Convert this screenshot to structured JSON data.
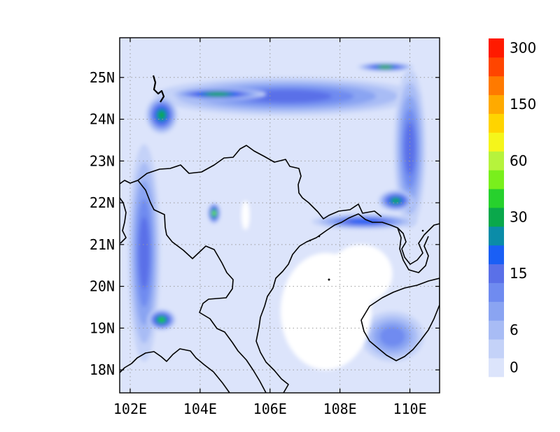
{
  "map": {
    "lon_range": [
      101.7,
      110.85
    ],
    "lat_range": [
      17.45,
      25.95
    ],
    "x_ticks": [
      {
        "value": 102,
        "label": "102E"
      },
      {
        "value": 104,
        "label": "104E"
      },
      {
        "value": 106,
        "label": "106E"
      },
      {
        "value": 108,
        "label": "108E"
      },
      {
        "value": 110,
        "label": "110E"
      }
    ],
    "y_ticks": [
      {
        "value": 18,
        "label": "18N"
      },
      {
        "value": 19,
        "label": "19N"
      },
      {
        "value": 20,
        "label": "20N"
      },
      {
        "value": 21,
        "label": "21N"
      },
      {
        "value": 22,
        "label": "22N"
      },
      {
        "value": 23,
        "label": "23N"
      },
      {
        "value": 24,
        "label": "24N"
      },
      {
        "value": 25,
        "label": "25N"
      }
    ],
    "gridlines": "dotted",
    "background_color": "#dce4fb",
    "features": [
      {
        "name": "northern-rain-band",
        "level": 5,
        "lon": 106.5,
        "lat": 24.55,
        "rx": 3.8,
        "ry": 0.45
      },
      {
        "name": "northern-rain-band-core",
        "level": 8,
        "lon": 104.5,
        "lat": 24.6,
        "rx": 1.4,
        "ry": 0.15
      },
      {
        "name": "northern-rain-band-east",
        "level": 8,
        "lon": 109.3,
        "lat": 25.25,
        "rx": 0.8,
        "ry": 0.1
      },
      {
        "name": "northwest-maximum",
        "level": 8,
        "lon": 102.9,
        "lat": 24.1,
        "rx": 0.45,
        "ry": 0.45
      },
      {
        "name": "eastern-column",
        "level": 5,
        "lon": 110.0,
        "lat": 23.3,
        "rx": 0.45,
        "ry": 1.9
      },
      {
        "name": "guangxi-maximum",
        "level": 8,
        "lon": 109.6,
        "lat": 22.05,
        "rx": 0.5,
        "ry": 0.25
      },
      {
        "name": "western-column",
        "level": 5,
        "lon": 102.4,
        "lat": 20.8,
        "rx": 0.45,
        "ry": 2.6
      },
      {
        "name": "laos-maximum",
        "level": 9,
        "lon": 102.9,
        "lat": 19.2,
        "rx": 0.4,
        "ry": 0.25
      },
      {
        "name": "northern-vietnam-peak",
        "level": 10,
        "lon": 104.4,
        "lat": 21.75,
        "rx": 0.18,
        "ry": 0.25
      },
      {
        "name": "coastal-band",
        "level": 6,
        "lon": 108.7,
        "lat": 21.55,
        "rx": 1.5,
        "ry": 0.18
      },
      {
        "name": "hainan-rain",
        "level": 4,
        "lon": 109.5,
        "lat": 18.8,
        "rx": 0.9,
        "ry": 0.6
      }
    ],
    "dry_areas": [
      {
        "name": "gulf-of-tonkin-dry",
        "lon": 107.6,
        "lat": 19.4,
        "rx": 1.3,
        "ry": 1.4
      },
      {
        "name": "gulf-open-dry",
        "lon": 108.6,
        "lat": 20.3,
        "rx": 0.9,
        "ry": 0.7
      },
      {
        "name": "inland-dry-patch",
        "lon": 105.3,
        "lat": 21.7,
        "rx": 0.12,
        "ry": 0.35
      }
    ]
  },
  "colorbar": {
    "colors": [
      "#dce4fb",
      "#c4d2f8",
      "#a8bcf5",
      "#8aa4f2",
      "#6f8bf0",
      "#5a70e8",
      "#1a5ff5",
      "#0b8ca8",
      "#0aa84b",
      "#27d12d",
      "#79ef1c",
      "#b6f33c",
      "#f5f51b",
      "#ffd400",
      "#ffaa00",
      "#ff7a00",
      "#ff4500",
      "#ff1a00"
    ],
    "labels": [
      {
        "index": 0,
        "text": "0"
      },
      {
        "index": 2,
        "text": "6"
      },
      {
        "index": 5,
        "text": "15"
      },
      {
        "index": 8,
        "text": "30"
      },
      {
        "index": 11,
        "text": "60"
      },
      {
        "index": 14,
        "text": "150"
      },
      {
        "index": 17,
        "text": "300"
      }
    ]
  }
}
